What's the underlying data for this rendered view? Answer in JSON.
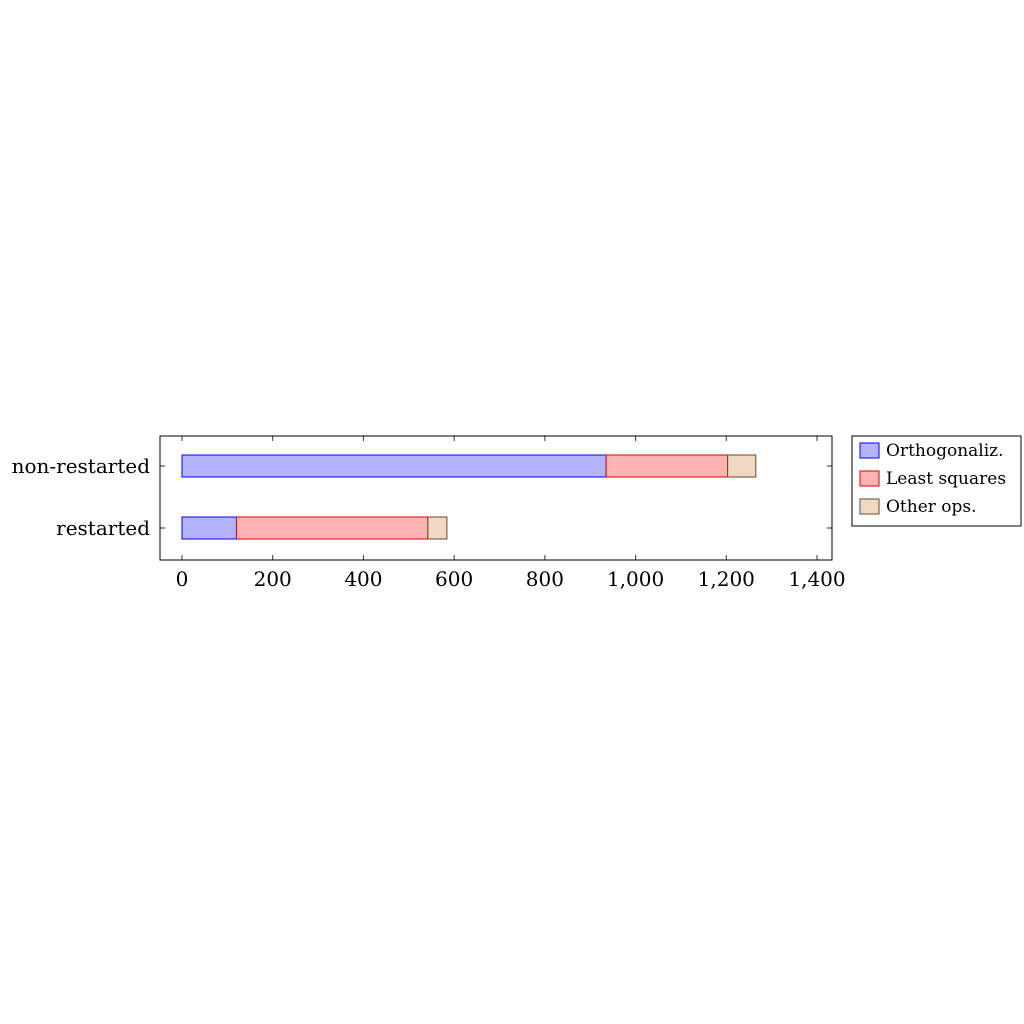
{
  "chart_data": {
    "type": "bar",
    "orientation": "horizontal",
    "stacked": true,
    "categories": [
      "restarted",
      "non-restarted"
    ],
    "series": [
      {
        "name": "Orthogonaliz.",
        "values": [
          120,
          935
        ],
        "fill": "#b3b3ff",
        "stroke": "#0000ff"
      },
      {
        "name": "Least squares",
        "values": [
          422,
          268
        ],
        "fill": "#ffb3b3",
        "stroke": "#e00000"
      },
      {
        "name": "Other ops.",
        "values": [
          42,
          62
        ],
        "fill": "#efd9c3",
        "stroke": "#6b4a2b"
      }
    ],
    "xlim": [
      -50,
      1440
    ],
    "xticks": [
      0,
      200,
      400,
      600,
      800,
      1000,
      1200,
      1400
    ],
    "xtick_labels": [
      "0",
      "200",
      "400",
      "600",
      "800",
      "1,000",
      "1,200",
      "1,400"
    ],
    "title": "",
    "xlabel": "",
    "ylabel": "",
    "grid": false,
    "legend_position": "outer right"
  }
}
